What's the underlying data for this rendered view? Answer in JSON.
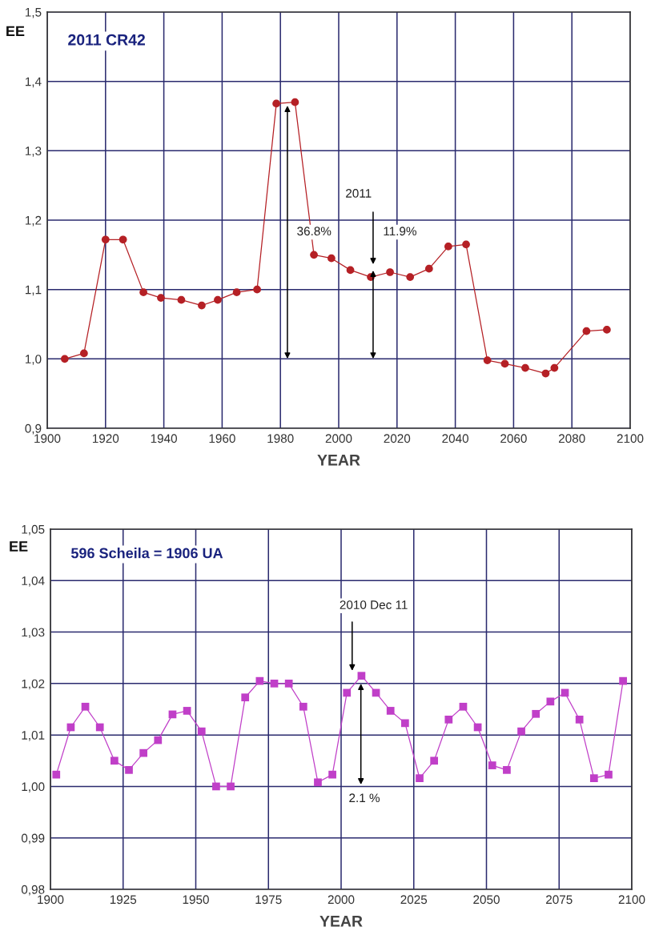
{
  "chart_data": [
    {
      "type": "line",
      "title": "2011 CR42",
      "xlabel": "YEAR",
      "ylabel": "EE",
      "marker": "circle",
      "grid": true,
      "xlim": [
        1900,
        2100
      ],
      "xticks": [
        1900,
        1920,
        1940,
        1960,
        1980,
        2000,
        2020,
        2040,
        2060,
        2080,
        2100
      ],
      "ylim": [
        0.9,
        1.5
      ],
      "yticks": [
        {
          "value": 0.9,
          "label": "0,9"
        },
        {
          "value": 1.0,
          "label": "1,0"
        },
        {
          "value": 1.1,
          "label": "1,1"
        },
        {
          "value": 1.2,
          "label": "1,2"
        },
        {
          "value": 1.3,
          "label": "1,3"
        },
        {
          "value": 1.4,
          "label": "1,4"
        },
        {
          "value": 1.5,
          "label": "1,5"
        }
      ],
      "series": [
        {
          "color": "#b52025",
          "x": [
            1906,
            1912.6,
            1920,
            1926,
            1933,
            1939,
            1946,
            1953,
            1958.5,
            1965,
            1972,
            1978.6,
            1985,
            1991.5,
            1997.5,
            2004,
            2011,
            2017.6,
            2024.5,
            2031,
            2037.6,
            2043.7,
            2051,
            2057,
            2064,
            2071,
            2074,
            2085,
            2092
          ],
          "values": [
            1.0,
            1.008,
            1.172,
            1.172,
            1.096,
            1.088,
            1.085,
            1.077,
            1.085,
            1.096,
            1.1,
            1.368,
            1.37,
            1.15,
            1.145,
            1.128,
            1.118,
            1.125,
            1.118,
            1.13,
            1.162,
            1.165,
            0.998,
            0.993,
            0.987,
            0.979,
            0.987,
            1.04,
            1.042
          ]
        }
      ],
      "annotations": [
        "36.8%",
        "2011",
        "11.9%"
      ]
    },
    {
      "type": "line",
      "title": "596 Scheila = 1906 UA",
      "xlabel": "YEAR",
      "ylabel": "EE",
      "marker": "square",
      "grid": true,
      "xlim": [
        1900,
        2100
      ],
      "xticks": [
        1900,
        1925,
        1950,
        1975,
        2000,
        2025,
        2050,
        2075,
        2100
      ],
      "ylim": [
        0.98,
        1.05
      ],
      "yticks": [
        {
          "value": 0.98,
          "label": "0,98"
        },
        {
          "value": 0.99,
          "label": "0,99"
        },
        {
          "value": 1.0,
          "label": "1,00"
        },
        {
          "value": 1.01,
          "label": "1,01"
        },
        {
          "value": 1.02,
          "label": "1,02"
        },
        {
          "value": 1.03,
          "label": "1,03"
        },
        {
          "value": 1.04,
          "label": "1,04"
        },
        {
          "value": 1.05,
          "label": "1,05"
        }
      ],
      "series": [
        {
          "color": "#c03fc8",
          "x": [
            1902,
            1907,
            1912,
            1917,
            1922,
            1927,
            1932,
            1937,
            1942,
            1947,
            1952,
            1957,
            1962,
            1967,
            1972,
            1977,
            1982,
            1987,
            1992,
            1997,
            2002,
            2007,
            2012,
            2017,
            2022,
            2027,
            2032,
            2037,
            2042,
            2047,
            2052,
            2057,
            2062,
            2067,
            2072,
            2077,
            2082,
            2087,
            2092,
            2097
          ],
          "values": [
            1.0023,
            1.0115,
            1.0155,
            1.0115,
            1.005,
            1.0032,
            1.0065,
            1.009,
            1.014,
            1.0147,
            1.0107,
            1.0,
            1.0,
            1.0173,
            1.0205,
            1.02,
            1.02,
            1.0155,
            1.0008,
            1.0023,
            1.0182,
            1.0215,
            1.0182,
            1.0147,
            1.0123,
            1.0016,
            1.005,
            1.013,
            1.0155,
            1.0115,
            1.0041,
            1.0032,
            1.0107,
            1.0141,
            1.0165,
            1.0182,
            1.013,
            1.0016,
            1.0023,
            1.0205
          ]
        }
      ],
      "annotations": [
        "2010 Dec 11",
        "2.1 %"
      ]
    }
  ]
}
